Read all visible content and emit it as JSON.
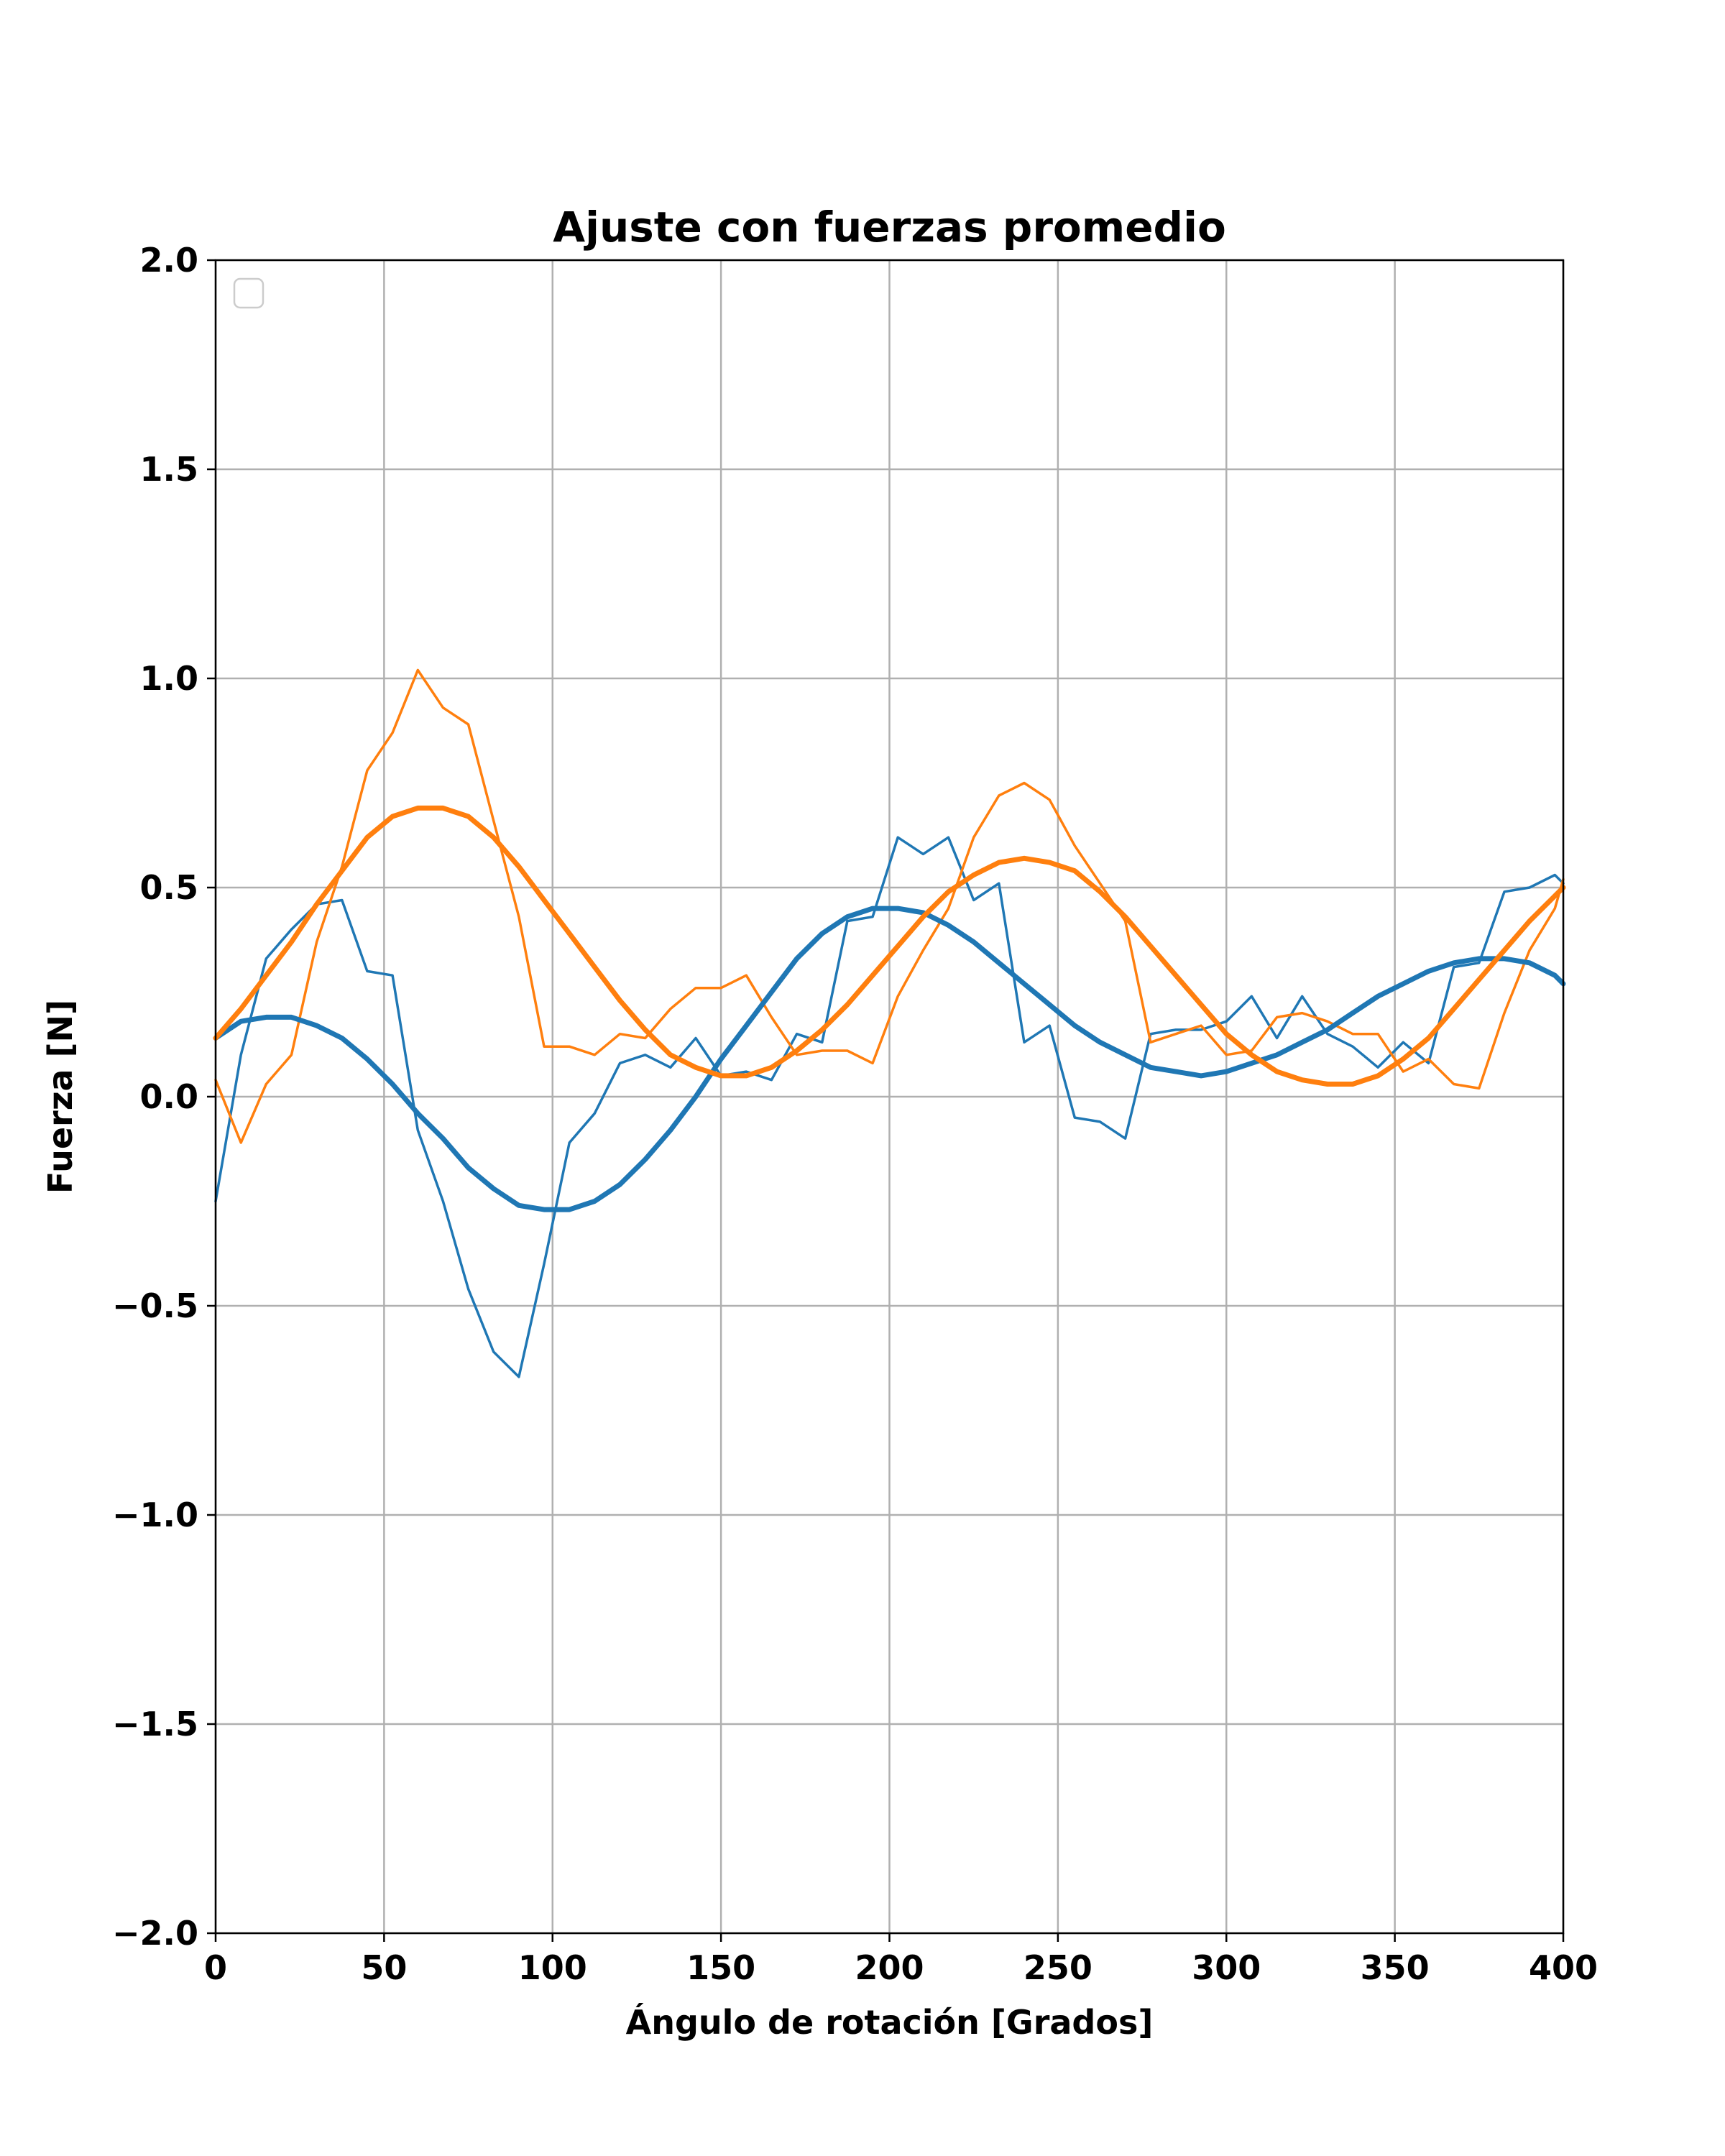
{
  "chart_data": {
    "type": "line",
    "title": "Ajuste con fuerzas promedio",
    "xlabel": "Ángulo de rotación [Grados]",
    "ylabel": "Fuerza [N]",
    "xlim": [
      0,
      400
    ],
    "ylim": [
      -2.0,
      2.0
    ],
    "xticks": [
      0,
      50,
      100,
      150,
      200,
      250,
      300,
      350,
      400
    ],
    "xtick_labels": [
      "0",
      "50",
      "100",
      "150",
      "200",
      "250",
      "300",
      "350",
      "400"
    ],
    "yticks": [
      -2.0,
      -1.5,
      -1.0,
      -0.5,
      0.0,
      0.5,
      1.0,
      1.5,
      2.0
    ],
    "ytick_labels": [
      "−2.0",
      "−1.5",
      "−1.0",
      "−0.5",
      "0.0",
      "0.5",
      "1.0",
      "1.5",
      "2.0"
    ],
    "grid": true,
    "legend": {
      "placement": "upper-left",
      "entries": []
    },
    "series": [
      {
        "style": "thin",
        "color": "#1f77b4",
        "x": [
          0,
          7.5,
          15,
          22.5,
          30,
          37.5,
          45,
          52.5,
          60,
          67.5,
          75,
          82.5,
          90,
          97.5,
          105,
          112.5,
          120,
          127.5,
          135,
          142.5,
          150,
          157.5,
          165,
          172.5,
          180,
          187.5,
          195,
          202.5,
          210,
          217.5,
          225,
          232.5,
          240,
          247.5,
          255,
          262.5,
          270,
          277.5,
          285,
          292.5,
          300,
          307.5,
          315,
          322.5,
          330,
          337.5,
          345,
          352.5,
          360,
          367.5,
          375,
          382.5,
          390,
          397.5,
          400
        ],
        "y": [
          -0.25,
          0.1,
          0.33,
          0.4,
          0.46,
          0.47,
          0.3,
          0.29,
          -0.08,
          -0.25,
          -0.46,
          -0.61,
          -0.67,
          -0.4,
          -0.11,
          -0.04,
          0.08,
          0.1,
          0.07,
          0.14,
          0.05,
          0.06,
          0.04,
          0.15,
          0.13,
          0.42,
          0.43,
          0.62,
          0.58,
          0.62,
          0.47,
          0.51,
          0.13,
          0.17,
          -0.05,
          -0.06,
          -0.1,
          0.15,
          0.16,
          0.16,
          0.18,
          0.24,
          0.14,
          0.24,
          0.15,
          0.12,
          0.07,
          0.13,
          0.08,
          0.31,
          0.32,
          0.49,
          0.5,
          0.53,
          0.51
        ]
      },
      {
        "style": "thin",
        "color": "#ff7f0e",
        "x": [
          0,
          7.5,
          15,
          22.5,
          30,
          37.5,
          45,
          52.5,
          60,
          67.5,
          75,
          82.5,
          90,
          97.5,
          105,
          112.5,
          120,
          127.5,
          135,
          142.5,
          150,
          157.5,
          165,
          172.5,
          180,
          187.5,
          195,
          202.5,
          210,
          217.5,
          225,
          232.5,
          240,
          247.5,
          255,
          262.5,
          270,
          277.5,
          285,
          292.5,
          300,
          307.5,
          315,
          322.5,
          330,
          337.5,
          345,
          352.5,
          360,
          367.5,
          375,
          382.5,
          390,
          397.5,
          400
        ],
        "y": [
          0.04,
          -0.11,
          0.03,
          0.1,
          0.37,
          0.55,
          0.78,
          0.87,
          1.02,
          0.93,
          0.89,
          0.66,
          0.43,
          0.12,
          0.12,
          0.1,
          0.15,
          0.14,
          0.21,
          0.26,
          0.26,
          0.29,
          0.19,
          0.1,
          0.11,
          0.11,
          0.08,
          0.24,
          0.35,
          0.45,
          0.62,
          0.72,
          0.75,
          0.71,
          0.6,
          0.51,
          0.42,
          0.13,
          0.15,
          0.17,
          0.1,
          0.11,
          0.19,
          0.2,
          0.18,
          0.15,
          0.15,
          0.06,
          0.09,
          0.03,
          0.02,
          0.2,
          0.35,
          0.45,
          0.52
        ]
      },
      {
        "style": "thick",
        "color": "#1f77b4",
        "x": [
          0,
          7.5,
          15,
          22.5,
          30,
          37.5,
          45,
          52.5,
          60,
          67.5,
          75,
          82.5,
          90,
          97.5,
          105,
          112.5,
          120,
          127.5,
          135,
          142.5,
          150,
          157.5,
          165,
          172.5,
          180,
          187.5,
          195,
          202.5,
          210,
          217.5,
          225,
          232.5,
          240,
          247.5,
          255,
          262.5,
          270,
          277.5,
          285,
          292.5,
          300,
          307.5,
          315,
          322.5,
          330,
          337.5,
          345,
          352.5,
          360,
          367.5,
          375,
          382.5,
          390,
          397.5,
          400
        ],
        "y": [
          0.14,
          0.18,
          0.19,
          0.19,
          0.17,
          0.14,
          0.09,
          0.03,
          -0.04,
          -0.1,
          -0.17,
          -0.22,
          -0.26,
          -0.27,
          -0.27,
          -0.25,
          -0.21,
          -0.15,
          -0.08,
          0.0,
          0.09,
          0.17,
          0.25,
          0.33,
          0.39,
          0.43,
          0.45,
          0.45,
          0.44,
          0.41,
          0.37,
          0.32,
          0.27,
          0.22,
          0.17,
          0.13,
          0.1,
          0.07,
          0.06,
          0.05,
          0.06,
          0.08,
          0.1,
          0.13,
          0.16,
          0.2,
          0.24,
          0.27,
          0.3,
          0.32,
          0.33,
          0.33,
          0.32,
          0.29,
          0.27
        ]
      },
      {
        "style": "thick",
        "color": "#ff7f0e",
        "x": [
          0,
          7.5,
          15,
          22.5,
          30,
          37.5,
          45,
          52.5,
          60,
          67.5,
          75,
          82.5,
          90,
          97.5,
          105,
          112.5,
          120,
          127.5,
          135,
          142.5,
          150,
          157.5,
          165,
          172.5,
          180,
          187.5,
          195,
          202.5,
          210,
          217.5,
          225,
          232.5,
          240,
          247.5,
          255,
          262.5,
          270,
          277.5,
          285,
          292.5,
          300,
          307.5,
          315,
          322.5,
          330,
          337.5,
          345,
          352.5,
          360,
          367.5,
          375,
          382.5,
          390,
          397.5,
          400
        ],
        "y": [
          0.14,
          0.21,
          0.29,
          0.37,
          0.46,
          0.54,
          0.62,
          0.67,
          0.69,
          0.69,
          0.67,
          0.62,
          0.55,
          0.47,
          0.39,
          0.31,
          0.23,
          0.16,
          0.1,
          0.07,
          0.05,
          0.05,
          0.07,
          0.11,
          0.16,
          0.22,
          0.29,
          0.36,
          0.43,
          0.49,
          0.53,
          0.56,
          0.57,
          0.56,
          0.54,
          0.49,
          0.43,
          0.36,
          0.29,
          0.22,
          0.15,
          0.1,
          0.06,
          0.04,
          0.03,
          0.03,
          0.05,
          0.09,
          0.14,
          0.21,
          0.28,
          0.35,
          0.42,
          0.48,
          0.5
        ]
      }
    ]
  }
}
